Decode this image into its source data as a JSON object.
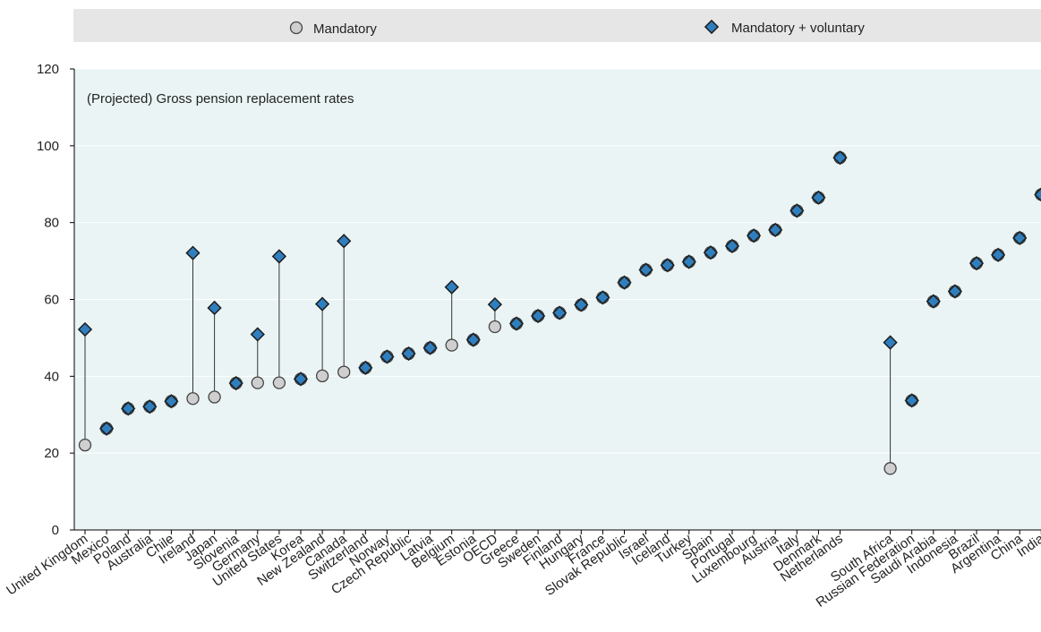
{
  "chart_data": {
    "type": "scatter",
    "title": "",
    "annotation": "(Projected) Gross pension  replacement rates",
    "xlabel": "",
    "ylabel": "",
    "ylim": [
      0,
      120
    ],
    "yticks": [
      0,
      20,
      40,
      60,
      80,
      100,
      120
    ],
    "grid": true,
    "legend_position": "top",
    "categories": [
      "United Kingdom",
      "Mexico",
      "Poland",
      "Australia",
      "Chile",
      "Ireland",
      "Japan",
      "Slovenia",
      "Germany",
      "United States",
      "Korea",
      "New Zealand",
      "Canada",
      "Switzerland",
      "Norway",
      "Czech Republic",
      "Latvia",
      "Belgium",
      "Estonia",
      "OECD",
      "Greece",
      "Sweden",
      "Finland",
      "Hungary",
      "France",
      "Slovak Republic",
      "Israel",
      "Iceland",
      "Turkey",
      "Spain",
      "Portugal",
      "Luxembourg",
      "Austria",
      "Italy",
      "Denmark",
      "Netherlands",
      "South Africa",
      "Russian Federation",
      "Saudi Arabia",
      "Indonesia",
      "Brazil",
      "Argentina",
      "China",
      "India"
    ],
    "series": [
      {
        "name": "Mandatory",
        "color": "#cfcfcf",
        "marker": "circle",
        "values": [
          22.1,
          26.4,
          31.6,
          32.1,
          33.5,
          34.2,
          34.6,
          38.2,
          38.3,
          38.3,
          39.3,
          40.1,
          41.1,
          42.2,
          45.1,
          45.9,
          47.4,
          48.1,
          49.5,
          52.9,
          53.7,
          55.7,
          56.5,
          58.6,
          60.5,
          64.4,
          67.7,
          68.9,
          69.8,
          72.2,
          73.9,
          76.6,
          78.1,
          83.1,
          86.5,
          96.9,
          16.0,
          33.7,
          59.5,
          62.1,
          69.4,
          71.6,
          76.0,
          87.3
        ]
      },
      {
        "name": "Mandatory + voluntary",
        "color": "#2f7fbf",
        "marker": "diamond",
        "values": [
          52.2,
          26.4,
          31.6,
          32.1,
          33.5,
          72.1,
          57.8,
          38.2,
          50.9,
          71.2,
          39.3,
          58.8,
          75.2,
          42.2,
          45.1,
          45.9,
          47.4,
          63.2,
          49.5,
          58.7,
          53.7,
          55.7,
          56.5,
          58.6,
          60.5,
          64.4,
          67.7,
          68.9,
          69.8,
          72.2,
          73.9,
          76.6,
          78.1,
          83.1,
          86.5,
          96.9,
          48.8,
          33.7,
          59.5,
          62.1,
          69.4,
          71.6,
          76.0,
          87.3
        ]
      }
    ]
  }
}
